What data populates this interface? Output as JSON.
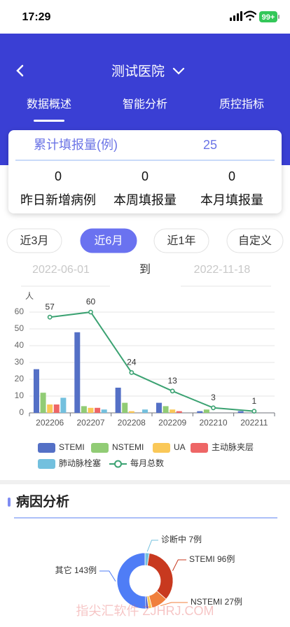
{
  "status_bar": {
    "time": "17:29",
    "battery": "99+"
  },
  "header": {
    "title": "测试医院",
    "tabs": [
      "数据概述",
      "智能分析",
      "质控指标"
    ],
    "active_tab": 0
  },
  "summary": {
    "total_label": "累计填报量(例)",
    "total_value": 25,
    "stats": [
      {
        "value": 0,
        "label": "昨日新增病例"
      },
      {
        "value": 0,
        "label": "本周填报量"
      },
      {
        "value": 0,
        "label": "本月填报量"
      }
    ]
  },
  "filters": {
    "options": [
      "近3月",
      "近6月",
      "近1年",
      "自定义"
    ],
    "active_index": 1
  },
  "date_range": {
    "start": "2022-06-01",
    "separator": "到",
    "end": "2022-11-18"
  },
  "chart_data": [
    {
      "type": "bar",
      "y_label": "人",
      "categories": [
        "202206",
        "202207",
        "202208",
        "202209",
        "202210",
        "202211"
      ],
      "series": [
        {
          "name": "STEMI",
          "color": "#5470c6",
          "values": [
            26,
            48,
            15,
            6,
            1,
            1
          ]
        },
        {
          "name": "NSTEMI",
          "color": "#91cc75",
          "values": [
            12,
            4,
            6,
            4,
            2,
            0
          ]
        },
        {
          "name": "UA",
          "color": "#fac858",
          "values": [
            5,
            3,
            1,
            2,
            0,
            0
          ]
        },
        {
          "name": "主动脉夹层",
          "color": "#ee6666",
          "values": [
            5,
            3,
            0,
            1,
            0,
            0
          ]
        },
        {
          "name": "肺动脉栓塞",
          "color": "#73c0de",
          "values": [
            9,
            2,
            2,
            0,
            0,
            0
          ]
        },
        {
          "name": "每月总数",
          "color": "#3ba272",
          "type": "line",
          "values": [
            57,
            60,
            24,
            13,
            3,
            1
          ]
        }
      ],
      "ylim": [
        0,
        60
      ],
      "yticks": [
        0,
        10,
        20,
        30,
        40,
        50,
        60
      ],
      "grid": true
    },
    {
      "type": "pie",
      "title": "病因分析",
      "values": [
        7,
        96,
        27,
        6,
        4,
        143
      ],
      "value_labels": [
        "诊断中 7例",
        "STEMI 96例",
        "NSTEMI 27例",
        null,
        null,
        "其它 143例"
      ],
      "colors": [
        "#73c0de",
        "#c8391f",
        "#f07f3c",
        "#fac858",
        "#3a4fc9",
        "#4f7df6"
      ],
      "donut": true
    }
  ],
  "watermark": "指尖汇软件 ZJHRJ.COM"
}
